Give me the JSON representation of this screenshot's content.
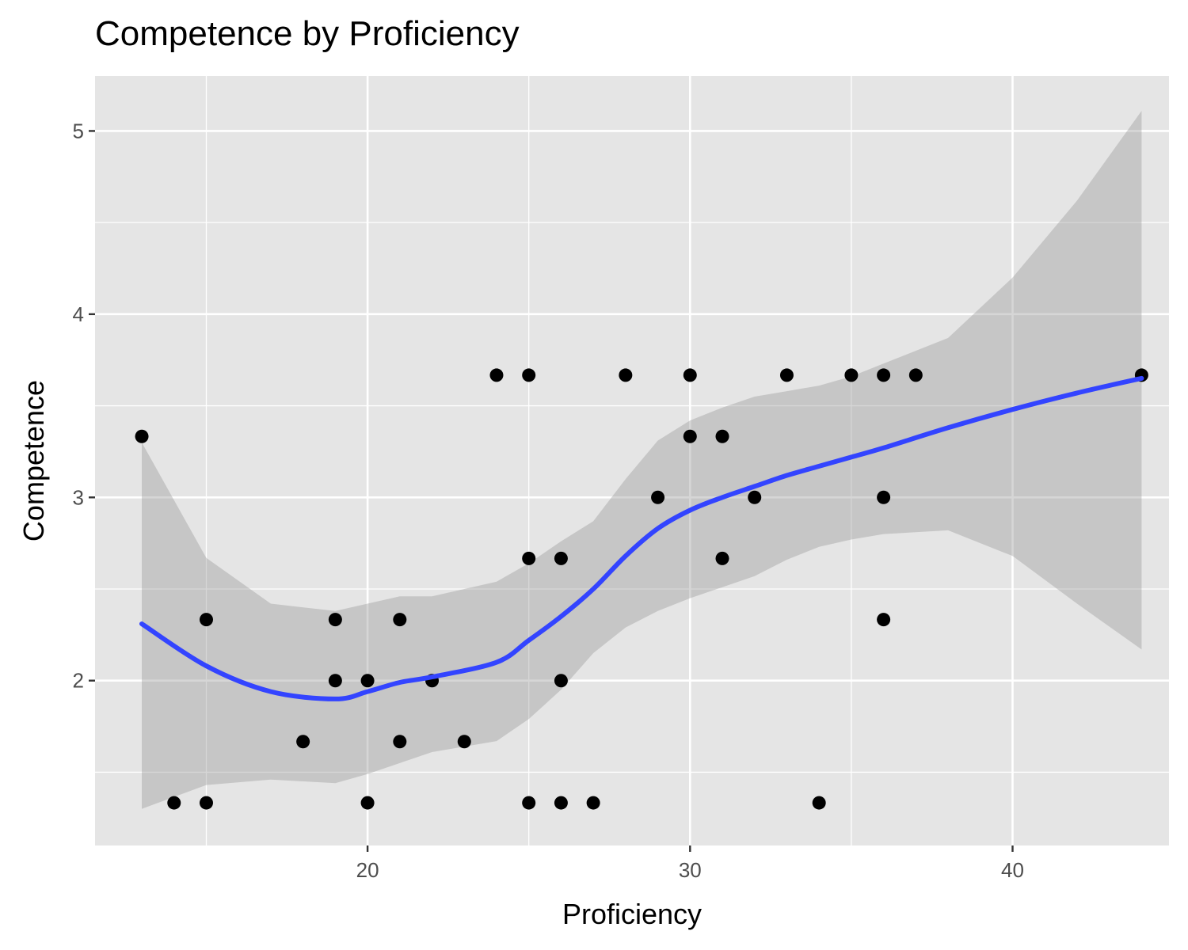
{
  "chart_data": {
    "type": "scatter",
    "title": "Competence by Proficiency",
    "xlabel": "Proficiency",
    "ylabel": "Competence",
    "xlim": [
      11.55,
      44.85
    ],
    "ylim": [
      1.1,
      5.3
    ],
    "x_ticks": [
      20,
      30,
      40
    ],
    "x_tick_labels": [
      "20",
      "30",
      "40"
    ],
    "y_ticks": [
      2,
      3,
      4,
      5
    ],
    "y_tick_labels": [
      "2",
      "3",
      "4",
      "5"
    ],
    "grid": true,
    "legend": "none",
    "colors": {
      "panel_bg": "#e5e5e5",
      "grid": "#ffffff",
      "points": "#000000",
      "smooth_line": "#3344ff",
      "ribbon": "#bdbdbd"
    },
    "points": [
      {
        "x": 13,
        "y": 3.333
      },
      {
        "x": 14,
        "y": 1.333
      },
      {
        "x": 15,
        "y": 1.333
      },
      {
        "x": 15,
        "y": 2.333
      },
      {
        "x": 18,
        "y": 1.667
      },
      {
        "x": 19,
        "y": 2.0
      },
      {
        "x": 19,
        "y": 2.333
      },
      {
        "x": 20,
        "y": 1.333
      },
      {
        "x": 20,
        "y": 2.0
      },
      {
        "x": 21,
        "y": 1.667
      },
      {
        "x": 21,
        "y": 2.333
      },
      {
        "x": 22,
        "y": 2.0
      },
      {
        "x": 23,
        "y": 1.667
      },
      {
        "x": 24,
        "y": 3.667
      },
      {
        "x": 25,
        "y": 1.333
      },
      {
        "x": 25,
        "y": 2.667
      },
      {
        "x": 25,
        "y": 3.667
      },
      {
        "x": 26,
        "y": 1.333
      },
      {
        "x": 26,
        "y": 2.0
      },
      {
        "x": 26,
        "y": 2.667
      },
      {
        "x": 27,
        "y": 1.333
      },
      {
        "x": 28,
        "y": 3.667
      },
      {
        "x": 29,
        "y": 3.0
      },
      {
        "x": 30,
        "y": 3.333
      },
      {
        "x": 30,
        "y": 3.667
      },
      {
        "x": 31,
        "y": 2.667
      },
      {
        "x": 31,
        "y": 3.333
      },
      {
        "x": 32,
        "y": 3.0
      },
      {
        "x": 33,
        "y": 3.667
      },
      {
        "x": 34,
        "y": 1.333
      },
      {
        "x": 35,
        "y": 3.667
      },
      {
        "x": 36,
        "y": 2.333
      },
      {
        "x": 36,
        "y": 3.0
      },
      {
        "x": 36,
        "y": 3.667
      },
      {
        "x": 37,
        "y": 3.667
      },
      {
        "x": 44,
        "y": 3.667
      }
    ],
    "smooth": {
      "x": [
        13,
        15,
        17,
        19,
        20,
        21,
        22,
        24,
        25,
        26,
        27,
        28,
        29,
        30,
        31,
        32,
        33,
        34,
        35,
        36,
        38,
        40,
        42,
        44
      ],
      "y": [
        2.31,
        2.08,
        1.94,
        1.9,
        1.94,
        1.99,
        2.02,
        2.1,
        2.22,
        2.35,
        2.5,
        2.68,
        2.83,
        2.93,
        3.0,
        3.06,
        3.12,
        3.17,
        3.22,
        3.27,
        3.38,
        3.48,
        3.57,
        3.65
      ],
      "lower": [
        1.3,
        1.43,
        1.46,
        1.44,
        1.49,
        1.55,
        1.61,
        1.67,
        1.79,
        1.95,
        2.15,
        2.29,
        2.38,
        2.45,
        2.51,
        2.57,
        2.66,
        2.73,
        2.77,
        2.8,
        2.82,
        2.68,
        2.42,
        2.17
      ],
      "upper": [
        3.3,
        2.67,
        2.42,
        2.38,
        2.42,
        2.46,
        2.46,
        2.54,
        2.64,
        2.76,
        2.87,
        3.1,
        3.31,
        3.42,
        3.49,
        3.55,
        3.58,
        3.61,
        3.66,
        3.73,
        3.87,
        4.2,
        4.62,
        5.11
      ]
    }
  }
}
